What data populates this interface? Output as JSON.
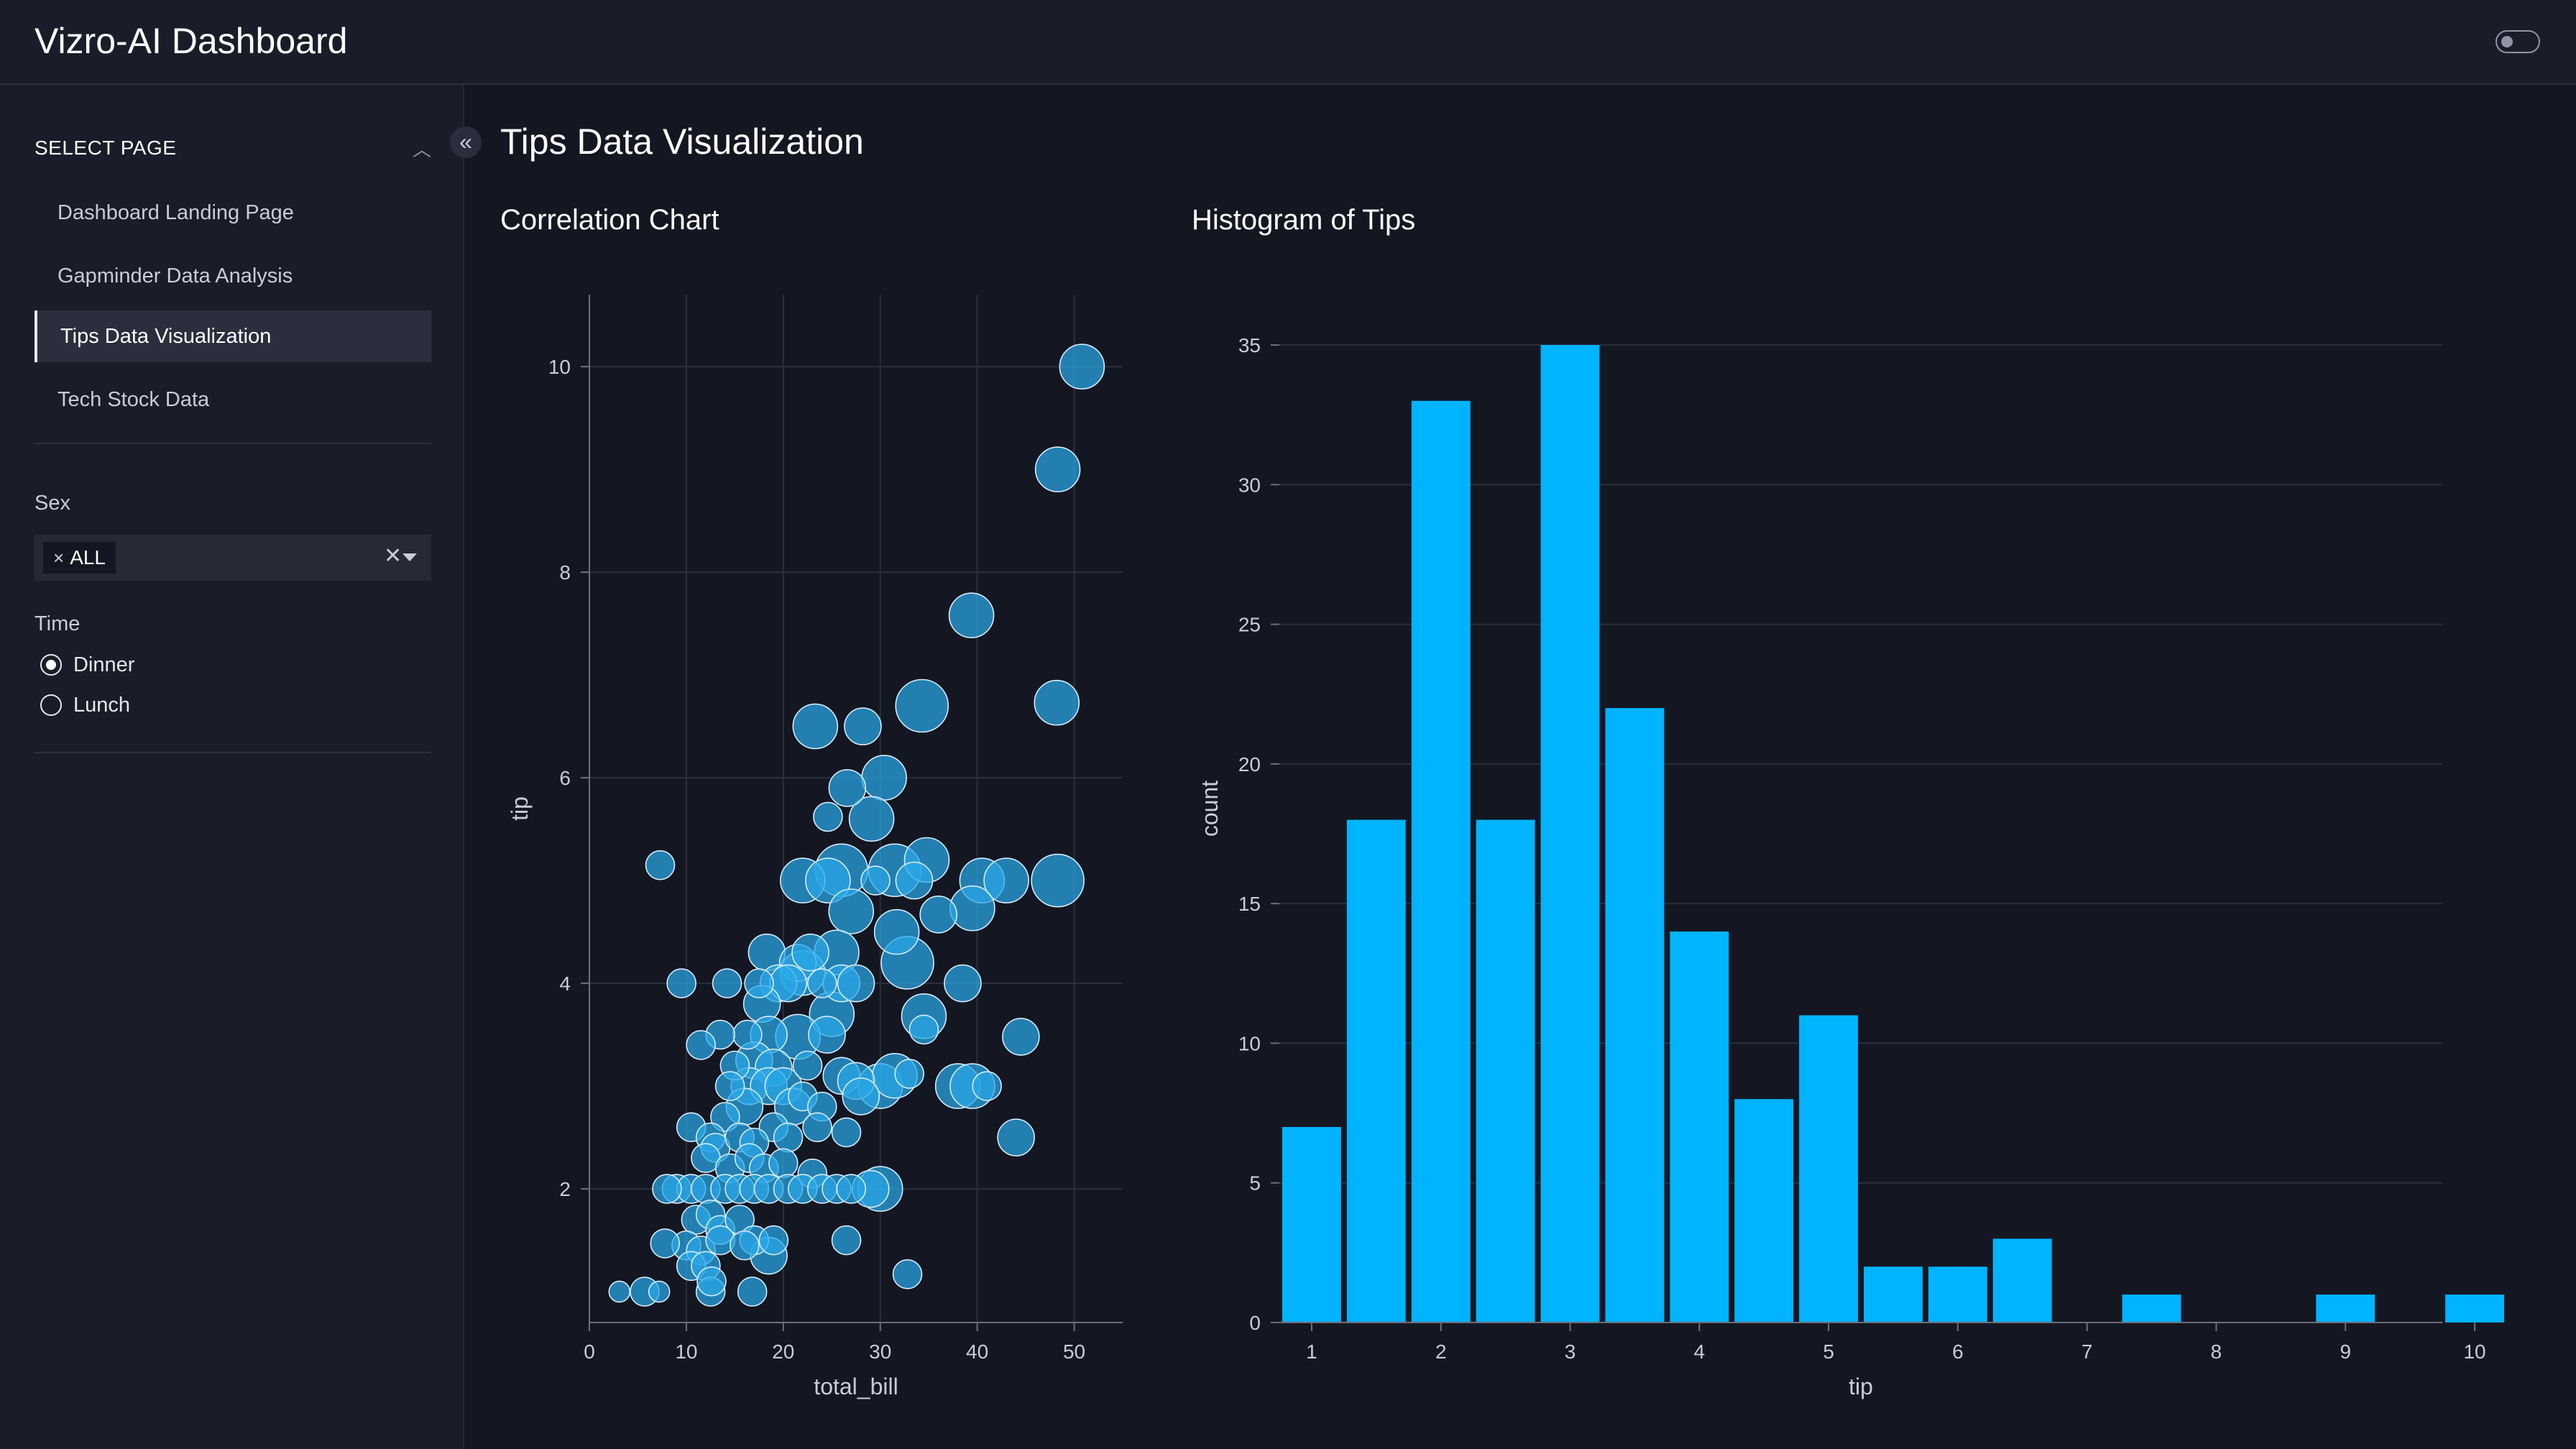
{
  "header": {
    "app_title": "Vizro-AI Dashboard"
  },
  "sidebar": {
    "select_page_label": "SELECT PAGE",
    "collapse_button_label": "«",
    "pages": [
      {
        "label": "Dashboard Landing Page"
      },
      {
        "label": "Gapminder Data Analysis"
      },
      {
        "label": "Tips Data Visualization",
        "active": true
      },
      {
        "label": "Tech Stock Data"
      }
    ],
    "sex_filter": {
      "label": "Sex",
      "selected": "ALL",
      "chip_remove": "×",
      "clear": "✕"
    },
    "time_filter": {
      "label": "Time",
      "options": [
        {
          "label": "Dinner",
          "checked": true
        },
        {
          "label": "Lunch",
          "checked": false
        }
      ]
    }
  },
  "main": {
    "page_title": "Tips Data Visualization"
  },
  "colors": {
    "accent": "#00b4ff",
    "scatter_fill": "#2aa8e8",
    "background": "#141721"
  },
  "chart_data": [
    {
      "type": "scatter",
      "title": "Correlation Chart",
      "xlabel": "total_bill",
      "ylabel": "tip",
      "xlim": [
        0,
        55
      ],
      "ylim": [
        0.7,
        10.7
      ],
      "xticks": [
        0,
        10,
        20,
        30,
        40,
        50
      ],
      "yticks": [
        2,
        4,
        6,
        8,
        10
      ],
      "grid": true,
      "size_note": "bubble size varies by party size",
      "points": [
        [
          50.8,
          10,
          4
        ],
        [
          48.3,
          9,
          4
        ],
        [
          39.4,
          7.58,
          4
        ],
        [
          34.3,
          6.7,
          5
        ],
        [
          48.2,
          6.73,
          4
        ],
        [
          23.3,
          6.5,
          4
        ],
        [
          28.2,
          6.5,
          3
        ],
        [
          30.4,
          6,
          4
        ],
        [
          26.6,
          5.9,
          3
        ],
        [
          24.6,
          5.62,
          2
        ],
        [
          29.1,
          5.6,
          4
        ],
        [
          7.3,
          5.15,
          2
        ],
        [
          22,
          5,
          4
        ],
        [
          24.6,
          5,
          4
        ],
        [
          26,
          5.1,
          5
        ],
        [
          29.5,
          5,
          2
        ],
        [
          31.5,
          5.1,
          5
        ],
        [
          33.5,
          5,
          3
        ],
        [
          34.8,
          5.2,
          4
        ],
        [
          40.5,
          5,
          4
        ],
        [
          43,
          5,
          4
        ],
        [
          48.3,
          5,
          5
        ],
        [
          27,
          4.7,
          4
        ],
        [
          36,
          4.67,
          3
        ],
        [
          39.5,
          4.73,
          4
        ],
        [
          31.7,
          4.5,
          4
        ],
        [
          32.8,
          4.2,
          5
        ],
        [
          25.5,
          4.3,
          4
        ],
        [
          18.3,
          4.3,
          3
        ],
        [
          21.5,
          4.2,
          3
        ],
        [
          22.8,
          4.3,
          3
        ],
        [
          9.5,
          4,
          2
        ],
        [
          14.2,
          4,
          2
        ],
        [
          17.5,
          4,
          2
        ],
        [
          19.5,
          4,
          3
        ],
        [
          20.5,
          4,
          3
        ],
        [
          22,
          4.1,
          4
        ],
        [
          24,
          4,
          2
        ],
        [
          26,
          4,
          3
        ],
        [
          27.5,
          4,
          3
        ],
        [
          38.5,
          4,
          3
        ],
        [
          17.8,
          3.8,
          3
        ],
        [
          25,
          3.7,
          4
        ],
        [
          34.5,
          3.68,
          4
        ],
        [
          16.3,
          3.5,
          2
        ],
        [
          18.5,
          3.5,
          3
        ],
        [
          21.5,
          3.48,
          4
        ],
        [
          24.5,
          3.5,
          3
        ],
        [
          13.5,
          3.5,
          2
        ],
        [
          34.5,
          3.55,
          2
        ],
        [
          44.5,
          3.48,
          3
        ],
        [
          11.5,
          3.4,
          2
        ],
        [
          15,
          3.2,
          2
        ],
        [
          17,
          3.25,
          3
        ],
        [
          19,
          3.18,
          3
        ],
        [
          22.5,
          3.2,
          2
        ],
        [
          26,
          3.1,
          3
        ],
        [
          27.5,
          3.05,
          3
        ],
        [
          30,
          3,
          4
        ],
        [
          31.5,
          3.1,
          4
        ],
        [
          33,
          3.12,
          2
        ],
        [
          38,
          3,
          4
        ],
        [
          39.5,
          3,
          4
        ],
        [
          41,
          3,
          2
        ],
        [
          14.5,
          3,
          2
        ],
        [
          16.5,
          3,
          3
        ],
        [
          18.5,
          3,
          3
        ],
        [
          20,
          3,
          3
        ],
        [
          22,
          2.9,
          2
        ],
        [
          24,
          2.8,
          2
        ],
        [
          28,
          2.9,
          3
        ],
        [
          14,
          2.7,
          2
        ],
        [
          16,
          2.8,
          3
        ],
        [
          19,
          2.6,
          2
        ],
        [
          21,
          2.8,
          3
        ],
        [
          23.5,
          2.6,
          2
        ],
        [
          26.5,
          2.55,
          2
        ],
        [
          10.5,
          2.6,
          2
        ],
        [
          12.5,
          2.5,
          2
        ],
        [
          13,
          2.4,
          2
        ],
        [
          15.5,
          2.5,
          2
        ],
        [
          17,
          2.45,
          2
        ],
        [
          20.5,
          2.5,
          2
        ],
        [
          44,
          2.5,
          3
        ],
        [
          12,
          2.3,
          2
        ],
        [
          14.5,
          2.2,
          2
        ],
        [
          16.5,
          2.3,
          2
        ],
        [
          18,
          2.2,
          2
        ],
        [
          20,
          2.25,
          2
        ],
        [
          23,
          2.15,
          2
        ],
        [
          9,
          2,
          2
        ],
        [
          10.5,
          2,
          2
        ],
        [
          12,
          2,
          2
        ],
        [
          14,
          2,
          2
        ],
        [
          15.5,
          2,
          2
        ],
        [
          17,
          2,
          2
        ],
        [
          18.5,
          2,
          2
        ],
        [
          20.5,
          2,
          2
        ],
        [
          22,
          2,
          2
        ],
        [
          24,
          2,
          2
        ],
        [
          25.5,
          2,
          2
        ],
        [
          27,
          2,
          2
        ],
        [
          29,
          2,
          3
        ],
        [
          30,
          2,
          4
        ],
        [
          8,
          2,
          2
        ],
        [
          11,
          1.7,
          2
        ],
        [
          12.5,
          1.75,
          2
        ],
        [
          13.5,
          1.6,
          2
        ],
        [
          15.5,
          1.7,
          2
        ],
        [
          17,
          1.5,
          2
        ],
        [
          19,
          1.5,
          2
        ],
        [
          10,
          1.45,
          2
        ],
        [
          11.5,
          1.4,
          2
        ],
        [
          13.5,
          1.5,
          2
        ],
        [
          16,
          1.45,
          2
        ],
        [
          18.5,
          1.35,
          3
        ],
        [
          26.5,
          1.5,
          2
        ],
        [
          10.5,
          1.25,
          2
        ],
        [
          12,
          1.25,
          2
        ],
        [
          7.8,
          1.47,
          2
        ],
        [
          3.1,
          1,
          1
        ],
        [
          5.7,
          1,
          2
        ],
        [
          7.2,
          1,
          1
        ],
        [
          12.5,
          1,
          2
        ],
        [
          16.8,
          1,
          2
        ],
        [
          12.6,
          1.1,
          2
        ],
        [
          32.8,
          1.17,
          2
        ]
      ]
    },
    {
      "type": "bar",
      "title": "Histogram of Tips",
      "xlabel": "tip",
      "ylabel": "count",
      "xlim": [
        0.75,
        10.25
      ],
      "ylim": [
        0,
        35
      ],
      "xticks": [
        1,
        2,
        3,
        4,
        5,
        6,
        7,
        8,
        9,
        10
      ],
      "yticks": [
        0,
        5,
        10,
        15,
        20,
        25,
        30,
        35
      ],
      "grid": true,
      "bin_width": 0.5,
      "bins": [
        1,
        1.5,
        2,
        2.5,
        3,
        3.5,
        4,
        4.5,
        5,
        5.5,
        6,
        6.5,
        7,
        7.5,
        8,
        8.5,
        9,
        9.5,
        10
      ],
      "values": [
        7,
        18,
        33,
        18,
        35,
        22,
        14,
        8,
        11,
        2,
        2,
        3,
        0,
        1,
        0,
        0,
        1,
        0,
        1
      ]
    }
  ]
}
